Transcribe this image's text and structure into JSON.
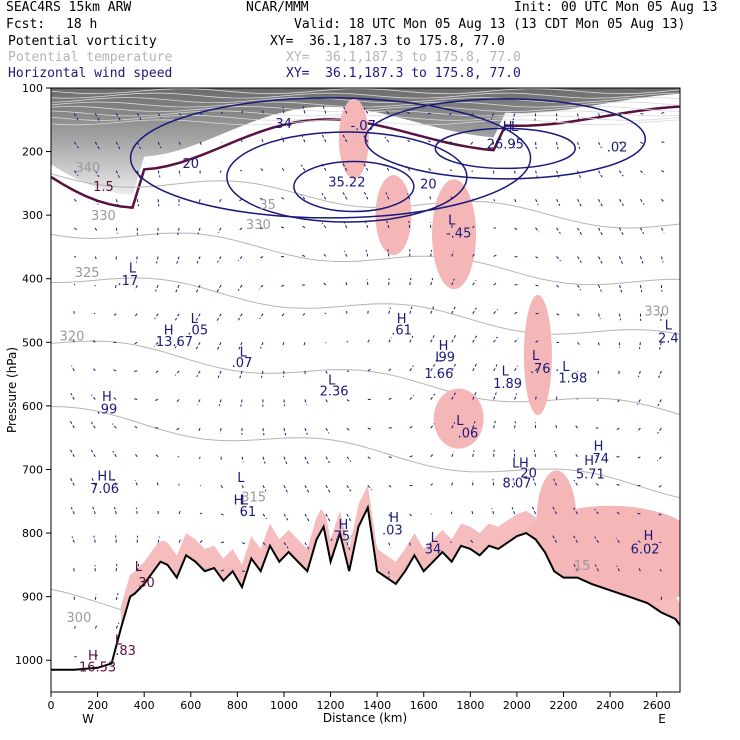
{
  "header": {
    "model": "SEAC4RS 15km ARW",
    "org": "NCAR/MMM",
    "init": "Init: 00 UTC Mon 05 Aug 13",
    "fcst_label": "Fcst:",
    "fcst_value": "18 h",
    "valid": "Valid: 18 UTC Mon 05 Aug 13 (13 CDT Mon 05 Aug 13)",
    "fields": [
      {
        "name": "Potential vorticity",
        "xy": "XY=  36.1,187.3 to 175.8, 77.0",
        "color": "#000000"
      },
      {
        "name": "Potential temperature",
        "xy": "XY=  36.1,187.3 to 175.8, 77.0",
        "color": "#b4b4b4"
      },
      {
        "name": "Horizontal wind speed",
        "xy": "XY=  36.1,187.3 to 175.8, 77.0",
        "color": "#1a1a7a"
      }
    ]
  },
  "chart_data": {
    "type": "cross-section",
    "xlabel": "Distance (km)",
    "ylabel": "Pressure (hPa)",
    "xlim": [
      0,
      2700
    ],
    "ylim": [
      1050,
      100
    ],
    "x_ticks": [
      0,
      200,
      400,
      600,
      800,
      1000,
      1200,
      1400,
      1600,
      1800,
      2000,
      2200,
      2400,
      2600
    ],
    "y_ticks": [
      100,
      200,
      300,
      400,
      500,
      600,
      700,
      800,
      900,
      1000
    ],
    "endpoints": {
      "left": "W",
      "right": "E"
    },
    "colors": {
      "pv_fill": "#505050",
      "pv_contour": "#5a1040",
      "theta": "#b4b4b4",
      "wind": "#1a1a7a",
      "vertical_motion": "#f4b6b6",
      "terrain": "#000000"
    },
    "terrain": {
      "x": [
        0,
        100,
        200,
        260,
        300,
        340,
        360,
        400,
        440,
        470,
        500,
        540,
        580,
        620,
        660,
        700,
        740,
        780,
        820,
        860,
        900,
        940,
        980,
        1020,
        1060,
        1100,
        1140,
        1170,
        1200,
        1240,
        1280,
        1320,
        1360,
        1400,
        1440,
        1480,
        1520,
        1560,
        1600,
        1640,
        1680,
        1720,
        1760,
        1800,
        1840,
        1880,
        1920,
        1960,
        2000,
        2040,
        2080,
        2120,
        2160,
        2200,
        2260,
        2320,
        2400,
        2480,
        2560,
        2620,
        2680,
        2700
      ],
      "p": [
        1015,
        1015,
        1012,
        1005,
        950,
        900,
        895,
        880,
        860,
        845,
        850,
        870,
        835,
        845,
        860,
        855,
        875,
        860,
        885,
        840,
        860,
        820,
        845,
        830,
        845,
        860,
        810,
        790,
        845,
        800,
        860,
        790,
        760,
        860,
        870,
        880,
        860,
        835,
        860,
        845,
        830,
        845,
        820,
        825,
        835,
        820,
        825,
        815,
        805,
        800,
        810,
        830,
        860,
        870,
        870,
        880,
        890,
        900,
        910,
        925,
        935,
        945
      ]
    },
    "theta_contours": [
      {
        "label": "300",
        "p": [
          950,
          930,
          905,
          880,
          860
        ]
      },
      {
        "label": "315",
        "p": [
          870,
          860,
          842,
          832,
          820,
          810,
          800,
          790,
          780,
          770,
          755,
          745,
          735,
          725,
          720,
          715,
          710,
          700,
          690,
          680,
          670,
          660,
          655,
          650,
          645,
          640,
          635,
          630,
          625,
          620,
          615,
          610
        ]
      },
      {
        "label": "320",
        "p": [
          500,
          505,
          510,
          520,
          525,
          530,
          540,
          545,
          550,
          560,
          565,
          570,
          575,
          580,
          585,
          590,
          600,
          610,
          620,
          630,
          640,
          650,
          660,
          670,
          680,
          690
        ]
      },
      {
        "label": "325",
        "p": [
          395,
          398,
          400,
          402,
          405,
          410,
          415,
          420,
          425,
          430,
          440,
          450,
          455,
          460,
          465,
          470,
          475,
          480,
          485,
          490,
          495,
          500
        ]
      },
      {
        "label": "330",
        "p": [
          320,
          322,
          325,
          328,
          330,
          332,
          335,
          340,
          345,
          350,
          355,
          360,
          370,
          380,
          390,
          400,
          410,
          420,
          430,
          440,
          450,
          460,
          470,
          480
        ]
      },
      {
        "label": "340",
        "p": [
          235,
          235,
          236,
          236,
          237,
          238,
          240,
          242,
          245,
          250,
          255,
          260,
          265,
          270,
          275,
          280,
          285,
          290,
          295,
          300,
          305,
          310
        ]
      }
    ],
    "wind_maxima": [
      {
        "label": "26.95",
        "x": 1950,
        "p": 195
      },
      {
        "label": "35.22",
        "x": 1270,
        "p": 255
      }
    ],
    "annotations": [
      {
        "text": "H",
        "x": 180,
        "p": 1000,
        "c": "pv"
      },
      {
        "text": "16.53",
        "x": 200,
        "p": 1018,
        "c": "pv"
      },
      {
        "text": "L",
        "x": 290,
        "p": 975,
        "c": "pv"
      },
      {
        "text": ".83",
        "x": 320,
        "p": 992,
        "c": "pv"
      },
      {
        "text": "L",
        "x": 375,
        "p": 860,
        "c": "pv"
      },
      {
        "text": "30",
        "x": 410,
        "p": 885,
        "c": "pv"
      },
      {
        "text": "1.5",
        "x": 225,
        "p": 262,
        "c": "pv"
      },
      {
        "text": "340",
        "x": 158,
        "p": 232,
        "c": "th"
      },
      {
        "text": "330",
        "x": 225,
        "p": 308,
        "c": "th"
      },
      {
        "text": "325",
        "x": 155,
        "p": 397,
        "c": "th"
      },
      {
        "text": "320",
        "x": 90,
        "p": 497,
        "c": "th"
      },
      {
        "text": "300",
        "x": 120,
        "p": 940,
        "c": "th"
      },
      {
        "text": "20",
        "x": 600,
        "p": 226,
        "c": "w"
      },
      {
        "text": "L",
        "x": 350,
        "p": 390,
        "c": "w"
      },
      {
        "text": ".17",
        "x": 330,
        "p": 410,
        "c": "w"
      },
      {
        "text": "H",
        "x": 505,
        "p": 488,
        "c": "w"
      },
      {
        "text": "13.67",
        "x": 530,
        "p": 506,
        "c": "w"
      },
      {
        "text": "L",
        "x": 615,
        "p": 470,
        "c": "w"
      },
      {
        "text": ".05",
        "x": 630,
        "p": 488,
        "c": "w"
      },
      {
        "text": "L",
        "x": 825,
        "p": 522,
        "c": "w"
      },
      {
        "text": ".07",
        "x": 820,
        "p": 539,
        "c": "w"
      },
      {
        "text": "H",
        "x": 240,
        "p": 592,
        "c": "w"
      },
      {
        "text": ".99",
        "x": 240,
        "p": 612,
        "c": "w"
      },
      {
        "text": "H",
        "x": 220,
        "p": 717,
        "c": "w"
      },
      {
        "text": "L",
        "x": 260,
        "p": 717,
        "c": "w"
      },
      {
        "text": "7.06",
        "x": 230,
        "p": 737,
        "c": "w"
      },
      {
        "text": "L",
        "x": 815,
        "p": 720,
        "c": "w"
      },
      {
        "text": "H",
        "x": 805,
        "p": 755,
        "c": "w"
      },
      {
        "text": "L",
        "x": 830,
        "p": 755,
        "c": "w"
      },
      {
        "text": "61",
        "x": 845,
        "p": 773,
        "c": "w"
      },
      {
        "text": "H",
        "x": 1255,
        "p": 794,
        "c": "w"
      },
      {
        "text": ".75",
        "x": 1240,
        "p": 812,
        "c": "w"
      },
      {
        "text": "H",
        "x": 1473,
        "p": 783,
        "c": "w"
      },
      {
        "text": ".03",
        "x": 1465,
        "p": 802,
        "c": "w"
      },
      {
        "text": "L",
        "x": 1645,
        "p": 814,
        "c": "w"
      },
      {
        "text": "34",
        "x": 1640,
        "p": 832,
        "c": "w"
      },
      {
        "text": "L",
        "x": 1205,
        "p": 566,
        "c": "w"
      },
      {
        "text": "2.36",
        "x": 1215,
        "p": 584,
        "c": "w"
      },
      {
        "text": "H",
        "x": 1505,
        "p": 470,
        "c": "w"
      },
      {
        "text": ".61",
        "x": 1505,
        "p": 488,
        "c": "w"
      },
      {
        "text": "H",
        "x": 1685,
        "p": 512,
        "c": "w"
      },
      {
        "text": "L",
        "x": 1665,
        "p": 530,
        "c": "w"
      },
      {
        "text": ".99",
        "x": 1690,
        "p": 530,
        "c": "w"
      },
      {
        "text": "1.66",
        "x": 1665,
        "p": 556,
        "c": "w"
      },
      {
        "text": "L",
        "x": 1950,
        "p": 552,
        "c": "w"
      },
      {
        "text": "1.89",
        "x": 1960,
        "p": 572,
        "c": "w"
      },
      {
        "text": "L",
        "x": 2080,
        "p": 528,
        "c": "w"
      },
      {
        "text": ".76",
        "x": 2100,
        "p": 548,
        "c": "w"
      },
      {
        "text": "L",
        "x": 2210,
        "p": 545,
        "c": "w"
      },
      {
        "text": "1.98",
        "x": 2240,
        "p": 563,
        "c": "w"
      },
      {
        "text": "L",
        "x": 1755,
        "p": 630,
        "c": "w"
      },
      {
        "text": ".06",
        "x": 1790,
        "p": 650,
        "c": "w"
      },
      {
        "text": "L",
        "x": 1995,
        "p": 697,
        "c": "w"
      },
      {
        "text": "H",
        "x": 2030,
        "p": 697,
        "c": "w"
      },
      {
        "text": "20",
        "x": 2050,
        "p": 713,
        "c": "w"
      },
      {
        "text": "8.07",
        "x": 2000,
        "p": 728,
        "c": "w"
      },
      {
        "text": "H",
        "x": 2350,
        "p": 670,
        "c": "w"
      },
      {
        "text": "H",
        "x": 2310,
        "p": 693,
        "c": "w"
      },
      {
        "text": "74",
        "x": 2360,
        "p": 690,
        "c": "w"
      },
      {
        "text": "5.71",
        "x": 2315,
        "p": 714,
        "c": "w"
      },
      {
        "text": "H",
        "x": 2565,
        "p": 811,
        "c": "w"
      },
      {
        "text": "6.02",
        "x": 2550,
        "p": 832,
        "c": "w"
      },
      {
        "text": "L",
        "x": 2650,
        "p": 480,
        "c": "w"
      },
      {
        "text": "2.4",
        "x": 2650,
        "p": 500,
        "c": "w"
      },
      {
        "text": "330",
        "x": 2600,
        "p": 458,
        "c": "th"
      },
      {
        "text": "H",
        "x": 1960,
        "p": 168,
        "c": "w"
      },
      {
        "text": "L",
        "x": 1990,
        "p": 168,
        "c": "w"
      },
      {
        "text": ".02",
        "x": 2430,
        "p": 200,
        "c": "w"
      },
      {
        "text": "20",
        "x": 1620,
        "p": 258,
        "c": "w"
      },
      {
        "text": "L",
        "x": 1720,
        "p": 315,
        "c": "w"
      },
      {
        "text": "-.45",
        "x": 1750,
        "p": 335,
        "c": "w"
      },
      {
        "text": "35",
        "x": 930,
        "p": 290,
        "c": "th"
      },
      {
        "text": "330",
        "x": 890,
        "p": 322,
        "c": "th"
      },
      {
        "text": "315",
        "x": 870,
        "p": 750,
        "c": "th"
      },
      {
        "text": "15",
        "x": 2280,
        "p": 858,
        "c": "th"
      },
      {
        "text": ".34",
        "x": 990,
        "p": 163,
        "c": "w"
      },
      {
        "text": "-.07",
        "x": 1340,
        "p": 166,
        "c": "w"
      }
    ]
  }
}
